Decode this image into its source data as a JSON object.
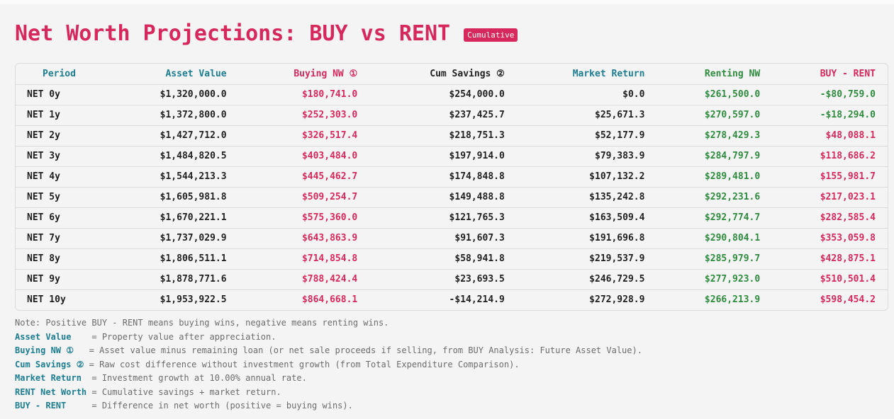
{
  "title": "Net Worth Projections: BUY vs RENT",
  "badge": "Cumulative",
  "colors": {
    "accent": "#d6285c",
    "teal": "#1d7d91",
    "green": "#2e8b3e"
  },
  "table": {
    "headers": {
      "period": "Period",
      "asset": "Asset Value",
      "buying": "Buying NW ①",
      "cum": "Cum Savings ②",
      "market": "Market Return",
      "renting": "Renting NW",
      "diff": "BUY - RENT"
    },
    "rows": [
      {
        "period": "NET 0y",
        "asset": "$1,320,000.0",
        "buying": "$180,741.0",
        "cum": "$254,000.0",
        "market": "$0.0",
        "renting": "$261,500.0",
        "diff": "-$80,759.0",
        "diff_positive": false
      },
      {
        "period": "NET 1y",
        "asset": "$1,372,800.0",
        "buying": "$252,303.0",
        "cum": "$237,425.7",
        "market": "$25,671.3",
        "renting": "$270,597.0",
        "diff": "-$18,294.0",
        "diff_positive": false
      },
      {
        "period": "NET 2y",
        "asset": "$1,427,712.0",
        "buying": "$326,517.4",
        "cum": "$218,751.3",
        "market": "$52,177.9",
        "renting": "$278,429.3",
        "diff": "$48,088.1",
        "diff_positive": true
      },
      {
        "period": "NET 3y",
        "asset": "$1,484,820.5",
        "buying": "$403,484.0",
        "cum": "$197,914.0",
        "market": "$79,383.9",
        "renting": "$284,797.9",
        "diff": "$118,686.2",
        "diff_positive": true
      },
      {
        "period": "NET 4y",
        "asset": "$1,544,213.3",
        "buying": "$445,462.7",
        "cum": "$174,848.8",
        "market": "$107,132.2",
        "renting": "$289,481.0",
        "diff": "$155,981.7",
        "diff_positive": true
      },
      {
        "period": "NET 5y",
        "asset": "$1,605,981.8",
        "buying": "$509,254.7",
        "cum": "$149,488.8",
        "market": "$135,242.8",
        "renting": "$292,231.6",
        "diff": "$217,023.1",
        "diff_positive": true
      },
      {
        "period": "NET 6y",
        "asset": "$1,670,221.1",
        "buying": "$575,360.0",
        "cum": "$121,765.3",
        "market": "$163,509.4",
        "renting": "$292,774.7",
        "diff": "$282,585.4",
        "diff_positive": true
      },
      {
        "period": "NET 7y",
        "asset": "$1,737,029.9",
        "buying": "$643,863.9",
        "cum": "$91,607.3",
        "market": "$191,696.8",
        "renting": "$290,804.1",
        "diff": "$353,059.8",
        "diff_positive": true
      },
      {
        "period": "NET 8y",
        "asset": "$1,806,511.1",
        "buying": "$714,854.8",
        "cum": "$58,941.8",
        "market": "$219,537.9",
        "renting": "$285,979.7",
        "diff": "$428,875.1",
        "diff_positive": true
      },
      {
        "period": "NET 9y",
        "asset": "$1,878,771.6",
        "buying": "$788,424.4",
        "cum": "$23,693.5",
        "market": "$246,729.5",
        "renting": "$277,923.0",
        "diff": "$510,501.4",
        "diff_positive": true
      },
      {
        "period": "NET 10y",
        "asset": "$1,953,922.5",
        "buying": "$864,668.1",
        "cum": "-$14,214.9",
        "market": "$272,928.9",
        "renting": "$266,213.9",
        "diff": "$598,454.2",
        "diff_positive": true
      }
    ]
  },
  "notes": {
    "note": "Note: Positive BUY - RENT means buying wins, negative means renting wins.",
    "items": [
      {
        "key": "Asset Value   ",
        "text": " = Property value after appreciation."
      },
      {
        "key": "Buying NW ①  ",
        "text": " = Asset value minus remaining loan (or net sale proceeds if selling, from BUY Analysis: Future Asset Value)."
      },
      {
        "key": "Cum Savings ②",
        "text": " = Raw cost difference without investment growth (from Total Expenditure Comparison)."
      },
      {
        "key": "Market Return ",
        "text": " = Investment growth at 10.00% annual rate."
      },
      {
        "key": "RENT Net Worth",
        "text": " = Cumulative savings + market return."
      },
      {
        "key": "BUY - RENT    ",
        "text": " = Difference in net worth (positive = buying wins)."
      }
    ]
  }
}
